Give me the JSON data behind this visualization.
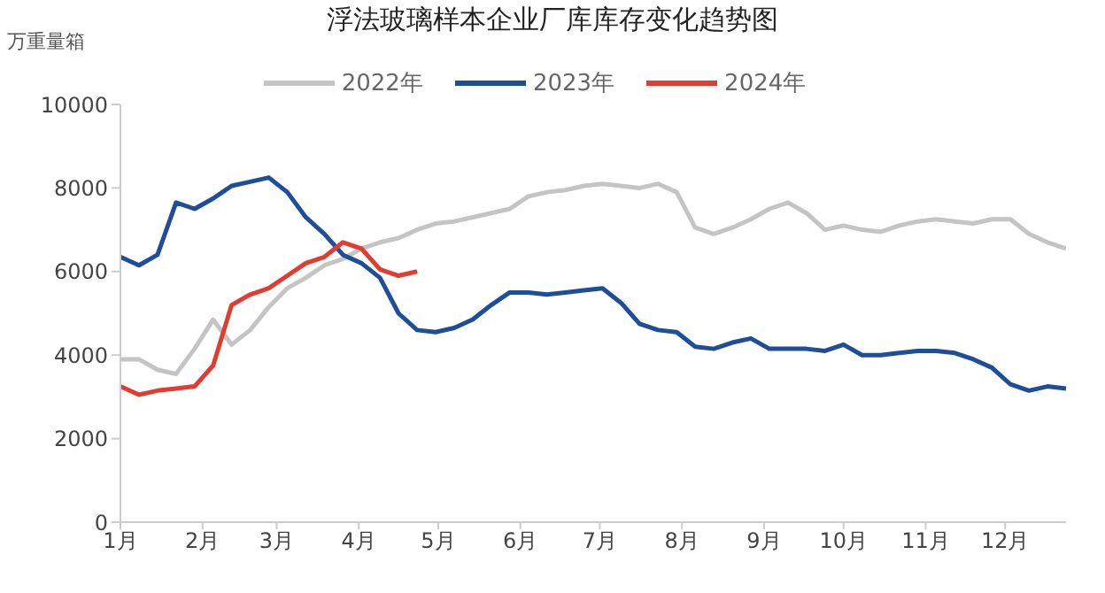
{
  "chart_data": {
    "type": "line",
    "title": "浮法玻璃样本企业厂库库存变化趋势图",
    "annotations": [
      "万重量箱"
    ],
    "x": [
      "--01-01",
      "--01-08",
      "--01-15",
      "--01-22",
      "--01-29",
      "--02-05",
      "--02-12",
      "--02-19",
      "--02-26",
      "--03-05",
      "--03-12",
      "--03-19",
      "--03-26",
      "--04-02",
      "--04-09",
      "--04-16",
      "--04-23",
      "--04-30",
      "--05-07",
      "--05-14",
      "--05-21",
      "--05-28",
      "--06-04",
      "--06-11",
      "--06-18",
      "--06-25",
      "--07-02",
      "--07-09",
      "--07-16",
      "--07-23",
      "--07-30",
      "--08-06",
      "--08-13",
      "--08-20",
      "--08-27",
      "--09-03",
      "--09-10",
      "--09-17",
      "--09-24",
      "--10-01",
      "--10-08",
      "--10-15",
      "--10-22",
      "--10-29",
      "--11-05",
      "--11-12",
      "--11-19",
      "--11-26",
      "--12-03",
      "--12-10",
      "--12-17",
      "--12-24"
    ],
    "series": [
      {
        "name": "2022年",
        "color": "#c4c4c4",
        "values": [
          3900,
          3900,
          3650,
          3550,
          4150,
          4850,
          4250,
          4600,
          5150,
          5600,
          5850,
          6150,
          6300,
          6550,
          6700,
          6800,
          7000,
          7150,
          7200,
          7300,
          7400,
          7500,
          7800,
          7900,
          7950,
          8050,
          8100,
          8050,
          8000,
          8100,
          7900,
          7050,
          6900,
          7050,
          7250,
          7500,
          7650,
          7400,
          7000,
          7100,
          7000,
          6950,
          7100,
          7200,
          7250,
          7200,
          7150,
          7250,
          7250,
          6900,
          6700,
          6550
        ]
      },
      {
        "name": "2023年",
        "color": "#1f4e99",
        "values": [
          6350,
          6150,
          6400,
          7650,
          7500,
          7750,
          8050,
          8150,
          8250,
          7900,
          7300,
          6900,
          6400,
          6200,
          5850,
          5000,
          4600,
          4550,
          4650,
          4850,
          5200,
          5500,
          5500,
          5450,
          5500,
          5550,
          5600,
          5250,
          4750,
          4600,
          4550,
          4200,
          4150,
          4300,
          4400,
          4150,
          4150,
          4150,
          4100,
          4250,
          4000,
          4000,
          4050,
          4100,
          4100,
          4050,
          3900,
          3700,
          3300,
          3150,
          3250,
          3200
        ]
      },
      {
        "name": "2024年",
        "color": "#e03c31",
        "values": [
          3250,
          3050,
          3150,
          3200,
          3250,
          3750,
          5200,
          5450,
          5600,
          5900,
          6200,
          6350,
          6700,
          6550,
          6050,
          5900,
          6000,
          null,
          null,
          null,
          null,
          null,
          null,
          null,
          null,
          null,
          null,
          null,
          null,
          null,
          null,
          null,
          null,
          null,
          null,
          null,
          null,
          null,
          null,
          null,
          null,
          null,
          null,
          null,
          null,
          null,
          null,
          null,
          null,
          null,
          null,
          null
        ]
      }
    ],
    "xlim": [
      "--01-01",
      "--12-24"
    ],
    "xticks": [
      {
        "value": "--01-01",
        "label": "1月"
      },
      {
        "value": "--02-01",
        "label": "2月"
      },
      {
        "value": "--03-01",
        "label": "3月"
      },
      {
        "value": "--04-01",
        "label": "4月"
      },
      {
        "value": "--05-01",
        "label": "5月"
      },
      {
        "value": "--06-01",
        "label": "6月"
      },
      {
        "value": "--07-01",
        "label": "7月"
      },
      {
        "value": "--08-01",
        "label": "8月"
      },
      {
        "value": "--09-01",
        "label": "9月"
      },
      {
        "value": "--10-01",
        "label": "10月"
      },
      {
        "value": "--11-01",
        "label": "11月"
      },
      {
        "value": "--12-01",
        "label": "12月"
      }
    ],
    "ylim": [
      0,
      10000
    ],
    "yticks": [
      0,
      2000,
      4000,
      6000,
      8000,
      10000
    ],
    "grid": false,
    "legend": "top",
    "marker": "none",
    "line_style": "solid"
  }
}
